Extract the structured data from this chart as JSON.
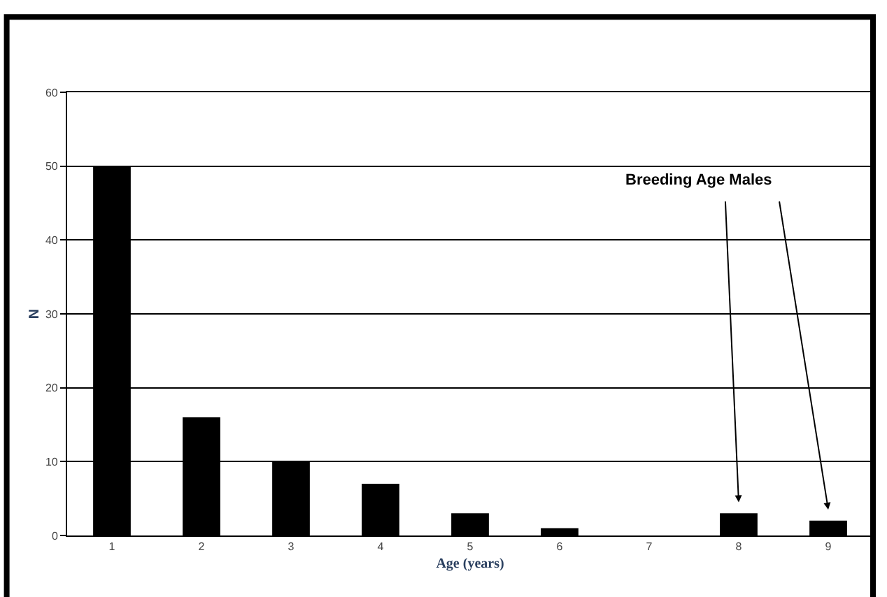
{
  "chart_data": {
    "type": "bar",
    "xlabel": "Age (years)",
    "ylabel": "N",
    "categories": [
      "1",
      "2",
      "3",
      "4",
      "5",
      "6",
      "7",
      "8",
      "9"
    ],
    "values": [
      50,
      16,
      10,
      7,
      3,
      1,
      0,
      3,
      2
    ],
    "color": "#000000",
    "ylim": [
      0,
      60
    ],
    "yticks": [
      0,
      10,
      20,
      30,
      40,
      50,
      60
    ],
    "grid": "y",
    "annotations": [
      "Breeding Age Males"
    ]
  }
}
